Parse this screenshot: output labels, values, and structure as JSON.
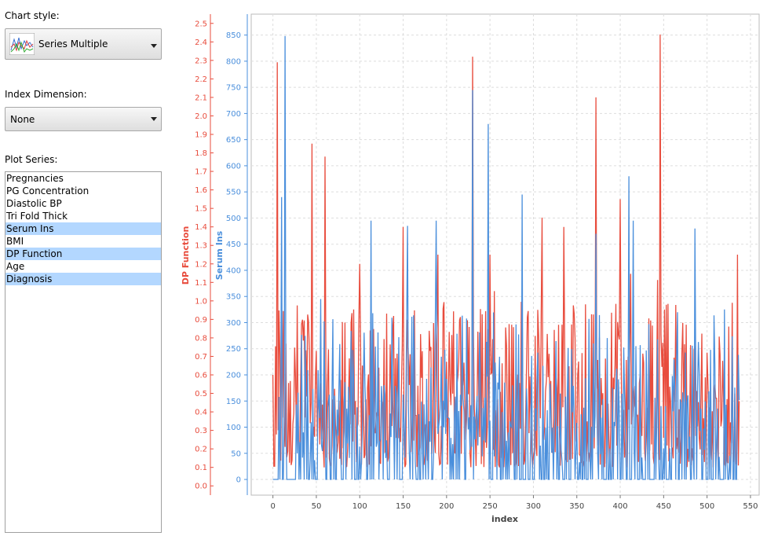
{
  "controls": {
    "chart_style_label": "Chart style:",
    "chart_style_value": "Series Multiple",
    "chart_style_icon": "series-multiple-chart-icon",
    "index_dimension_label": "Index Dimension:",
    "index_dimension_value": "None",
    "plot_series_label": "Plot Series:",
    "plot_series": [
      {
        "label": "Pregnancies",
        "selected": false
      },
      {
        "label": "PG Concentration",
        "selected": false
      },
      {
        "label": "Diastolic BP",
        "selected": false
      },
      {
        "label": "Tri Fold Thick",
        "selected": false
      },
      {
        "label": "Serum Ins",
        "selected": true
      },
      {
        "label": "BMI",
        "selected": false
      },
      {
        "label": "DP Function",
        "selected": true
      },
      {
        "label": "Age",
        "selected": false
      },
      {
        "label": "Diagnosis",
        "selected": true
      }
    ]
  },
  "colors": {
    "dp_function": "#e84c3d",
    "serum_ins": "#4a8fdc",
    "selection": "#b3d7ff"
  },
  "chart_data": {
    "type": "line",
    "xlabel": "index",
    "x_range": [
      -25,
      560
    ],
    "x_ticks": [
      "0",
      "50",
      "100",
      "150",
      "200",
      "250",
      "300",
      "350",
      "400",
      "450",
      "500",
      "550"
    ],
    "y_left": {
      "label": "DP Function",
      "range": [
        -0.05,
        2.55
      ],
      "ticks": [
        "0.0",
        "0.1",
        "0.2",
        "0.3",
        "0.4",
        "0.5",
        "0.6",
        "0.7",
        "0.8",
        "0.9",
        "1.0",
        "1.1",
        "1.2",
        "1.3",
        "1.4",
        "1.5",
        "1.6",
        "1.7",
        "1.8",
        "1.9",
        "2.0",
        "2.1",
        "2.2",
        "2.3",
        "2.4",
        "2.5"
      ]
    },
    "y_right": {
      "label": "Serum Ins",
      "range": [
        -30,
        890
      ],
      "ticks": [
        "0",
        "50",
        "100",
        "150",
        "200",
        "250",
        "300",
        "350",
        "400",
        "450",
        "500",
        "550",
        "600",
        "650",
        "700",
        "750",
        "800",
        "850"
      ]
    },
    "grid": true,
    "series": [
      {
        "name": "DP Function",
        "axis": "left",
        "points_count": 538,
        "peaks": [
          [
            0,
            0.6
          ],
          [
            5,
            2.29
          ],
          [
            45,
            1.85
          ],
          [
            60,
            1.78
          ],
          [
            100,
            1.2
          ],
          [
            150,
            1.4
          ],
          [
            190,
            1.25
          ],
          [
            230,
            2.32
          ],
          [
            250,
            1.25
          ],
          [
            310,
            1.45
          ],
          [
            335,
            1.4
          ],
          [
            372,
            2.1
          ],
          [
            400,
            1.55
          ],
          [
            446,
            2.44
          ],
          [
            535,
            1.25
          ]
        ],
        "baseline": 0.2
      },
      {
        "name": "Serum Ins",
        "axis": "right",
        "points_count": 538,
        "peaks": [
          [
            10,
            540
          ],
          [
            14,
            848
          ],
          [
            55,
            345
          ],
          [
            113,
            495
          ],
          [
            155,
            485
          ],
          [
            188,
            495
          ],
          [
            230,
            745
          ],
          [
            248,
            680
          ],
          [
            287,
            545
          ],
          [
            372,
            470
          ],
          [
            410,
            580
          ],
          [
            415,
            495
          ],
          [
            486,
            480
          ],
          [
            520,
            325
          ]
        ],
        "baseline": 0
      }
    ]
  }
}
